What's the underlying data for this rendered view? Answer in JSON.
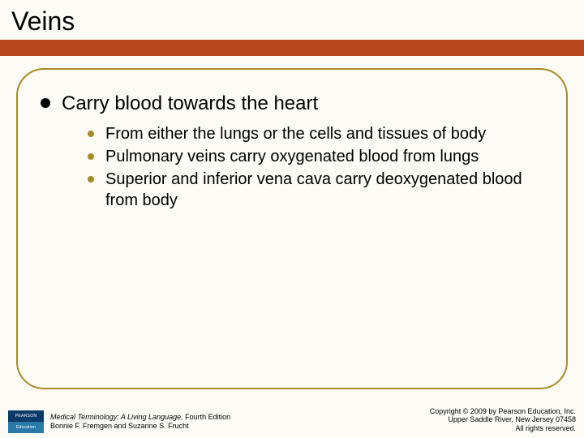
{
  "slide": {
    "title": "Veins",
    "bg_color": "#fcfbf5",
    "bar_color": "#b7461a",
    "frame_border_color": "#a68b26",
    "lvl1_bullet_color": "#000000",
    "lvl2_bullet_color": "#a68b26",
    "lvl1": {
      "text": "Carry blood towards the heart"
    },
    "lvl2": [
      {
        "text": "From either the lungs or the cells and tissues of body"
      },
      {
        "text": "Pulmonary veins carry oxygenated blood from lungs"
      },
      {
        "text": "Superior and inferior vena cava carry deoxygenated blood from body"
      }
    ]
  },
  "footer": {
    "logo": {
      "top": "PEARSON",
      "bottom": "Education"
    },
    "book_title": "Medical Terminology: A Living Language,",
    "book_edition": " Fourth Edition",
    "authors": "Bonnie F. Fremgen and Suzanne S. Frucht",
    "copyright_line1": "Copyright © 2009 by Pearson Education, Inc.",
    "copyright_line2": "Upper Saddle River, New Jersey 07458",
    "copyright_line3": "All rights reserved."
  }
}
